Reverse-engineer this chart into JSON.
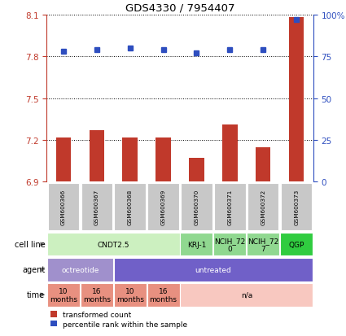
{
  "title": "GDS4330 / 7954407",
  "samples": [
    "GSM600366",
    "GSM600367",
    "GSM600368",
    "GSM600369",
    "GSM600370",
    "GSM600371",
    "GSM600372",
    "GSM600373"
  ],
  "bar_values": [
    7.22,
    7.27,
    7.22,
    7.22,
    7.07,
    7.31,
    7.15,
    8.08
  ],
  "dot_values": [
    78,
    79,
    80,
    79,
    77,
    79,
    79,
    97
  ],
  "ylim_left": [
    6.9,
    8.1
  ],
  "ylim_right": [
    0,
    100
  ],
  "yticks_left": [
    6.9,
    7.2,
    7.5,
    7.8,
    8.1
  ],
  "yticks_right": [
    0,
    25,
    50,
    75,
    100
  ],
  "ytick_labels_right": [
    "0",
    "25",
    "50",
    "75",
    "100%"
  ],
  "bar_color": "#C0392B",
  "dot_color": "#2E4EBF",
  "cell_line_row": {
    "label": "cell line",
    "groups": [
      {
        "text": "CNDT2.5",
        "span": [
          0,
          4
        ],
        "color": "#CCF0C0"
      },
      {
        "text": "KRJ-1",
        "span": [
          4,
          5
        ],
        "color": "#90D890"
      },
      {
        "text": "NCIH_72\n0",
        "span": [
          5,
          6
        ],
        "color": "#90D890"
      },
      {
        "text": "NCIH_72\n7",
        "span": [
          6,
          7
        ],
        "color": "#90D890"
      },
      {
        "text": "QGP",
        "span": [
          7,
          8
        ],
        "color": "#30CC40"
      }
    ]
  },
  "agent_row": {
    "label": "agent",
    "groups": [
      {
        "text": "octreotide",
        "span": [
          0,
          2
        ],
        "color": "#A090CC"
      },
      {
        "text": "untreated",
        "span": [
          2,
          8
        ],
        "color": "#7060C8"
      }
    ]
  },
  "time_row": {
    "label": "time",
    "groups": [
      {
        "text": "10\nmonths",
        "span": [
          0,
          1
        ],
        "color": "#E89080"
      },
      {
        "text": "16\nmonths",
        "span": [
          1,
          2
        ],
        "color": "#E89080"
      },
      {
        "text": "10\nmonths",
        "span": [
          2,
          3
        ],
        "color": "#E89080"
      },
      {
        "text": "16\nmonths",
        "span": [
          3,
          4
        ],
        "color": "#E89080"
      },
      {
        "text": "n/a",
        "span": [
          4,
          8
        ],
        "color": "#F8C8C0"
      }
    ]
  },
  "legend": [
    {
      "label": "transformed count",
      "color": "#C0392B"
    },
    {
      "label": "percentile rank within the sample",
      "color": "#2E4EBF"
    }
  ],
  "left_axis_color": "#C0392B",
  "right_axis_color": "#2E4EBF",
  "sample_box_color": "#C8C8C8"
}
